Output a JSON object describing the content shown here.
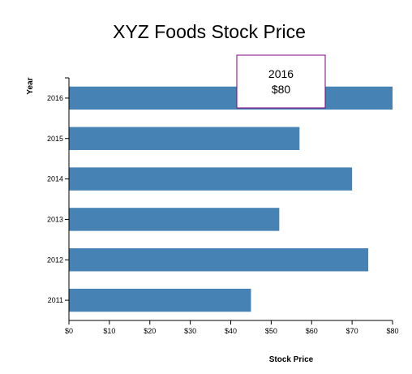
{
  "chart_data": {
    "type": "bar",
    "orientation": "horizontal",
    "title": "XYZ Foods Stock Price",
    "xlabel": "Stock Price",
    "ylabel": "Year",
    "categories": [
      "2011",
      "2012",
      "2013",
      "2014",
      "2015",
      "2016"
    ],
    "values": [
      45,
      74,
      52,
      70,
      57,
      80
    ],
    "xlim": [
      0,
      80
    ],
    "x_ticks": [
      "$0",
      "$10",
      "$20",
      "$30",
      "$40",
      "$50",
      "$60",
      "$70",
      "$80"
    ],
    "grid": false,
    "bar_color": "#4682b4",
    "tooltip": {
      "year": "2016",
      "price": "$80",
      "border_color": "#800080"
    }
  }
}
